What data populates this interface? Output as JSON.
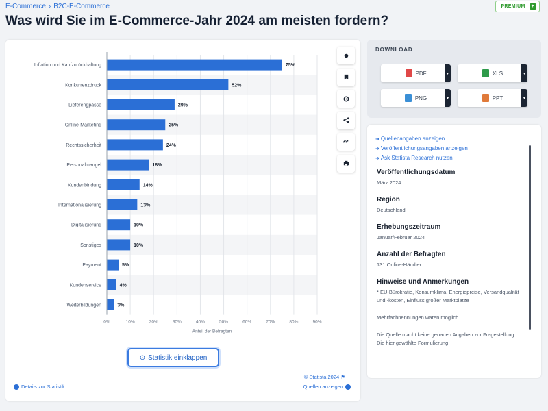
{
  "breadcrumb": {
    "items": [
      "E-Commerce",
      "B2C-E-Commerce"
    ],
    "separator": "›"
  },
  "premium": {
    "label": "PREMIUM",
    "badge": "+"
  },
  "page_title": "Was wird Sie im E-Commerce-Jahr 2024 am meisten fordern?",
  "colors": {
    "bar": "#2b6fd6",
    "link": "#2b6fd6",
    "accent": "#3b7be0"
  },
  "chart_data": {
    "type": "bar",
    "orientation": "horizontal",
    "categories": [
      "Inflation und Kaufzurückhaltung",
      "Konkurrenzdruck",
      "Lieferengpässe",
      "Online-Marketing",
      "Rechtssicherheit",
      "Personalmangel",
      "Kundenbindung",
      "Internationalisierung",
      "Digitalisierung",
      "Sonstiges",
      "Payment",
      "Kundenservice",
      "Weiterbildungen"
    ],
    "values": [
      75,
      52,
      29,
      25,
      24,
      18,
      14,
      13,
      10,
      10,
      5,
      4,
      3
    ],
    "value_labels": [
      "75%",
      "52%",
      "29%",
      "25%",
      "24%",
      "18%",
      "14%",
      "13%",
      "10%",
      "10%",
      "5%",
      "4%",
      "3%"
    ],
    "xlabel": "Anteil der Befragten",
    "xlim": [
      0,
      90
    ],
    "xticks": [
      "0%",
      "10%",
      "20%",
      "30%",
      "40%",
      "50%",
      "60%",
      "70%",
      "80%",
      "90%"
    ],
    "grid": true
  },
  "toolbar": {
    "icons": [
      "bell-icon",
      "bookmark-icon",
      "settings-icon",
      "share-icon",
      "quote-icon",
      "print-icon"
    ]
  },
  "collapse_button": {
    "icon": "⊙",
    "label": "Statistik einklappen"
  },
  "copyright": "© Statista 2024",
  "copyright_flag": "⚑",
  "details_link": "Details zur Statistik",
  "sources_link": "Quellen anzeigen",
  "download": {
    "title": "DOWNLOAD",
    "buttons": [
      {
        "label": "PDF",
        "color": "#e04848"
      },
      {
        "label": "XLS",
        "color": "#2e9a4a"
      },
      {
        "label": "PNG",
        "color": "#3a8fd6"
      },
      {
        "label": "PPT",
        "color": "#e07a3a"
      }
    ],
    "caret": "▾"
  },
  "info": {
    "links": [
      "Quellenangaben anzeigen",
      "Veröffentlichungsangaben anzeigen",
      "Ask Statista Research nutzen"
    ],
    "sections": [
      {
        "heading": "Veröffentlichungsdatum",
        "value": "März 2024"
      },
      {
        "heading": "Region",
        "value": "Deutschland"
      },
      {
        "heading": "Erhebungszeitraum",
        "value": "Januar/Februar 2024"
      },
      {
        "heading": "Anzahl der Befragten",
        "value": "131 Online-Händler"
      },
      {
        "heading": "Hinweise und Anmerkungen",
        "value": "* EU-Bürokratie, Konsumklima, Energiepreise, Versandqualität und -kosten, Einfluss großer Marktplätze"
      }
    ],
    "note1": "Mehrfachnennungen waren möglich.",
    "note2": "Die Quelle macht keine genauen Angaben zur Fragestellung. Die hier gewählte Formulierung"
  }
}
